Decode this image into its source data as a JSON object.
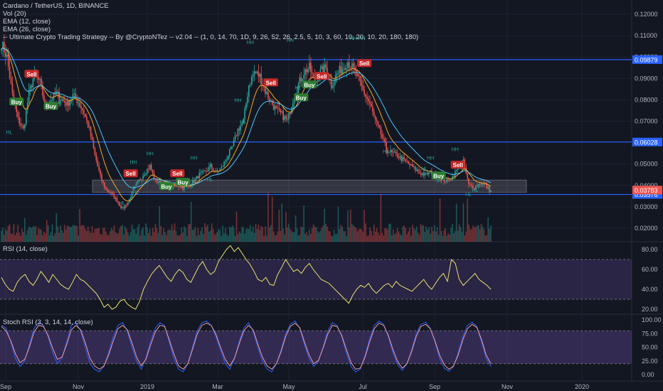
{
  "header": {
    "title": "Cardano / TetherUS, 1D, BINANCE",
    "indicators": [
      "Vol (20)",
      "EMA (12, close)",
      "EMA (26, close)",
      "-- Ultimate Crypto Trading Strategy -- By @CryptoNTez -- v2.04 -- (1, 0, 14, 70, 1D, 9, 26, 52, 26, 2.5, 5, 10, 3, 60, 10, 20, 10, 20, 180, 180)"
    ]
  },
  "rsi_pane": {
    "label": "RSI (14, close)"
  },
  "stoch_pane": {
    "label": "Stoch RSI (3, 3, 14, 14, close)"
  },
  "colors": {
    "background": "#131722",
    "up": "#26a69a",
    "down": "#ef5350",
    "ema12": "#f5a623",
    "ema26": "#4fc3f7",
    "hline": "#2962ff",
    "rsi_line": "#e8e36b",
    "rsi_band": "#7e57c2",
    "stoch_k": "#2962ff",
    "stoch_d": "#ef9a9a",
    "buy": "#2e7d32",
    "sell": "#c62828",
    "last_price": "#ef5350"
  },
  "chart_data": [
    {
      "type": "candlestick",
      "title": "Cardano / TetherUS, 1D, BINANCE",
      "ylim": [
        0.02,
        0.125
      ],
      "y_ticks": [
        "0.12000",
        "0.11000",
        "0.10000",
        "0.09000",
        "0.08000",
        "0.07000",
        "0.05000",
        "0.04000",
        "0.03000",
        "0.02000"
      ],
      "price_labels": [
        {
          "text": "0.09879",
          "value": 0.09879,
          "kind": "hline"
        },
        {
          "text": "0.06028",
          "value": 0.06028,
          "kind": "hline"
        },
        {
          "text": "0.03576",
          "value": 0.03576,
          "kind": "hline"
        },
        {
          "text": "0.03783",
          "value": 0.03783,
          "kind": "last"
        }
      ],
      "x_ticks": [
        "Sep",
        "Nov",
        "2019",
        "Mar",
        "May",
        "Jul",
        "Sep",
        "Nov",
        "2020"
      ],
      "zone": {
        "from": 0.0368,
        "to": 0.0425
      },
      "close_path": [
        {
          "i": 0,
          "v": 0.1065
        },
        {
          "i": 4,
          "v": 0.1
        },
        {
          "i": 8,
          "v": 0.082
        },
        {
          "i": 12,
          "v": 0.071
        },
        {
          "i": 16,
          "v": 0.066
        },
        {
          "i": 20,
          "v": 0.083
        },
        {
          "i": 24,
          "v": 0.092
        },
        {
          "i": 28,
          "v": 0.088
        },
        {
          "i": 32,
          "v": 0.077
        },
        {
          "i": 36,
          "v": 0.08
        },
        {
          "i": 40,
          "v": 0.083
        },
        {
          "i": 44,
          "v": 0.08
        },
        {
          "i": 48,
          "v": 0.078
        },
        {
          "i": 52,
          "v": 0.082
        },
        {
          "i": 56,
          "v": 0.079
        },
        {
          "i": 60,
          "v": 0.074
        },
        {
          "i": 64,
          "v": 0.066
        },
        {
          "i": 68,
          "v": 0.054
        },
        {
          "i": 72,
          "v": 0.044
        },
        {
          "i": 76,
          "v": 0.038
        },
        {
          "i": 80,
          "v": 0.036
        },
        {
          "i": 84,
          "v": 0.033
        },
        {
          "i": 88,
          "v": 0.029
        },
        {
          "i": 92,
          "v": 0.032
        },
        {
          "i": 96,
          "v": 0.038
        },
        {
          "i": 100,
          "v": 0.042
        },
        {
          "i": 104,
          "v": 0.046
        },
        {
          "i": 108,
          "v": 0.049
        },
        {
          "i": 112,
          "v": 0.042
        },
        {
          "i": 116,
          "v": 0.041
        },
        {
          "i": 120,
          "v": 0.04
        },
        {
          "i": 124,
          "v": 0.039
        },
        {
          "i": 128,
          "v": 0.04
        },
        {
          "i": 132,
          "v": 0.039
        },
        {
          "i": 136,
          "v": 0.04
        },
        {
          "i": 140,
          "v": 0.042
        },
        {
          "i": 144,
          "v": 0.045
        },
        {
          "i": 148,
          "v": 0.046
        },
        {
          "i": 152,
          "v": 0.049
        },
        {
          "i": 156,
          "v": 0.046
        },
        {
          "i": 160,
          "v": 0.048
        },
        {
          "i": 164,
          "v": 0.053
        },
        {
          "i": 168,
          "v": 0.058
        },
        {
          "i": 172,
          "v": 0.066
        },
        {
          "i": 176,
          "v": 0.07
        },
        {
          "i": 180,
          "v": 0.087
        },
        {
          "i": 184,
          "v": 0.093
        },
        {
          "i": 188,
          "v": 0.091
        },
        {
          "i": 192,
          "v": 0.084
        },
        {
          "i": 196,
          "v": 0.079
        },
        {
          "i": 200,
          "v": 0.075
        },
        {
          "i": 204,
          "v": 0.073
        },
        {
          "i": 208,
          "v": 0.07
        },
        {
          "i": 212,
          "v": 0.08
        },
        {
          "i": 216,
          "v": 0.087
        },
        {
          "i": 220,
          "v": 0.093
        },
        {
          "i": 224,
          "v": 0.095
        },
        {
          "i": 228,
          "v": 0.088
        },
        {
          "i": 232,
          "v": 0.093
        },
        {
          "i": 236,
          "v": 0.095
        },
        {
          "i": 240,
          "v": 0.087
        },
        {
          "i": 244,
          "v": 0.092
        },
        {
          "i": 248,
          "v": 0.095
        },
        {
          "i": 252,
          "v": 0.098
        },
        {
          "i": 256,
          "v": 0.094
        },
        {
          "i": 260,
          "v": 0.089
        },
        {
          "i": 264,
          "v": 0.083
        },
        {
          "i": 268,
          "v": 0.078
        },
        {
          "i": 272,
          "v": 0.07
        },
        {
          "i": 276,
          "v": 0.064
        },
        {
          "i": 280,
          "v": 0.057
        },
        {
          "i": 284,
          "v": 0.055
        },
        {
          "i": 288,
          "v": 0.054
        },
        {
          "i": 292,
          "v": 0.052
        },
        {
          "i": 296,
          "v": 0.05
        },
        {
          "i": 300,
          "v": 0.048
        },
        {
          "i": 304,
          "v": 0.046
        },
        {
          "i": 308,
          "v": 0.045
        },
        {
          "i": 312,
          "v": 0.046
        },
        {
          "i": 316,
          "v": 0.044
        },
        {
          "i": 320,
          "v": 0.043
        },
        {
          "i": 324,
          "v": 0.042
        },
        {
          "i": 328,
          "v": 0.044
        },
        {
          "i": 332,
          "v": 0.048
        },
        {
          "i": 336,
          "v": 0.051
        },
        {
          "i": 340,
          "v": 0.04
        },
        {
          "i": 344,
          "v": 0.039
        },
        {
          "i": 348,
          "v": 0.041
        },
        {
          "i": 352,
          "v": 0.04
        },
        {
          "i": 355,
          "v": 0.0378
        }
      ],
      "markers": [
        {
          "text": "Sell",
          "kind": "sell",
          "i": 22,
          "v": 0.092
        },
        {
          "text": "Buy",
          "kind": "buy",
          "i": 11,
          "v": 0.079
        },
        {
          "text": "Buy",
          "kind": "buy",
          "i": 36,
          "v": 0.077
        },
        {
          "text": "Sell",
          "kind": "sell",
          "i": 94,
          "v": 0.0455
        },
        {
          "text": "Buy",
          "kind": "buy",
          "i": 120,
          "v": 0.0395
        },
        {
          "text": "Sell",
          "kind": "sell",
          "i": 128,
          "v": 0.0455
        },
        {
          "text": "Buy",
          "kind": "buy",
          "i": 132,
          "v": 0.0415
        },
        {
          "text": "Sell",
          "kind": "sell",
          "i": 196,
          "v": 0.088
        },
        {
          "text": "Buy",
          "kind": "buy",
          "i": 218,
          "v": 0.081
        },
        {
          "text": "Buy",
          "kind": "buy",
          "i": 224,
          "v": 0.087
        },
        {
          "text": "Sell",
          "kind": "sell",
          "i": 233,
          "v": 0.091
        },
        {
          "text": "Sell",
          "kind": "sell",
          "i": 264,
          "v": 0.097
        },
        {
          "text": "Buy",
          "kind": "buy",
          "i": 318,
          "v": 0.0445
        },
        {
          "text": "Sell",
          "kind": "sell",
          "i": 332,
          "v": 0.0495
        }
      ],
      "pivot_labels": [
        {
          "text": "HL",
          "i": 6,
          "v": 0.064
        },
        {
          "text": "HL",
          "i": 42,
          "v": 0.078
        },
        {
          "text": "HH",
          "i": 181,
          "v": 0.106
        },
        {
          "text": "HH",
          "i": 210,
          "v": 0.107
        },
        {
          "text": "HH",
          "i": 256,
          "v": 0.108
        },
        {
          "text": "HH",
          "i": 262,
          "v": 0.108
        },
        {
          "text": "HH",
          "i": 108,
          "v": 0.054
        },
        {
          "text": "HH",
          "i": 96,
          "v": 0.05
        },
        {
          "text": "HH",
          "i": 140,
          "v": 0.052
        },
        {
          "text": "HL",
          "i": 88,
          "v": 0.031
        },
        {
          "text": "HL",
          "i": 98,
          "v": 0.036
        },
        {
          "text": "HL",
          "i": 176,
          "v": 0.069
        },
        {
          "text": "HL",
          "i": 216,
          "v": 0.085
        },
        {
          "text": "HL",
          "i": 280,
          "v": 0.055
        },
        {
          "text": "HL",
          "i": 308,
          "v": 0.047
        },
        {
          "text": "HH",
          "i": 312,
          "v": 0.052
        },
        {
          "text": "HH",
          "i": 330,
          "v": 0.056
        },
        {
          "text": "HL",
          "i": 340,
          "v": 0.035
        },
        {
          "text": "HL",
          "i": 345,
          "v": 0.037
        },
        {
          "text": "HH",
          "i": 172,
          "v": 0.079
        },
        {
          "text": "HL",
          "i": 152,
          "v": 0.042
        }
      ]
    },
    {
      "type": "line",
      "title": "RSI (14, close)",
      "ylim": [
        15,
        88
      ],
      "y_ticks": [
        "80.00",
        "60.00",
        "40.00",
        "20.00"
      ],
      "band": [
        30,
        70
      ],
      "values": [
        52,
        45,
        40,
        38,
        47,
        52,
        55,
        48,
        44,
        50,
        58,
        53,
        47,
        55,
        50,
        45,
        42,
        40,
        47,
        55,
        50,
        48,
        44,
        40,
        36,
        30,
        22,
        25,
        20,
        22,
        28,
        30,
        25,
        22,
        20,
        28,
        40,
        48,
        55,
        60,
        64,
        58,
        52,
        48,
        55,
        60,
        57,
        50,
        47,
        55,
        63,
        68,
        60,
        55,
        58,
        68,
        74,
        80,
        84,
        78,
        82,
        76,
        70,
        65,
        58,
        50,
        48,
        52,
        45,
        44,
        55,
        62,
        70,
        64,
        58,
        60,
        56,
        62,
        66,
        60,
        55,
        50,
        48,
        46,
        42,
        38,
        34,
        30,
        26,
        34,
        40,
        44,
        42,
        46,
        40,
        36,
        40,
        44,
        46,
        42,
        48,
        44,
        42,
        40,
        38,
        42,
        46,
        50,
        44,
        40,
        46,
        52,
        56,
        48,
        70,
        66,
        50,
        44,
        48,
        52,
        56,
        50,
        47,
        44,
        40
      ]
    },
    {
      "type": "line",
      "title": "Stoch RSI (3, 3, 14, 14, close)",
      "ylim": [
        -6,
        108
      ],
      "y_ticks": [
        "100.00",
        "75.00",
        "50.00",
        "25.00",
        "0.00"
      ],
      "band": [
        20,
        80
      ],
      "series": [
        {
          "values": [
            90,
            85,
            60,
            30,
            15,
            25,
            55,
            85,
            95,
            90,
            70,
            40,
            20,
            30,
            60,
            90,
            95,
            80,
            50,
            20,
            10,
            5,
            15,
            40,
            70,
            90,
            95,
            80,
            50,
            25,
            10,
            30,
            60,
            85,
            95,
            90,
            60,
            30,
            10,
            5,
            20,
            50,
            80,
            95,
            98,
            90,
            70,
            45,
            20,
            10,
            30,
            60,
            85,
            95,
            80,
            50,
            25,
            10,
            5,
            20,
            45,
            75,
            92,
            98,
            85,
            55,
            30,
            15,
            25,
            50,
            80,
            95,
            90,
            70,
            40,
            15,
            5,
            10,
            35,
            65,
            90,
            98,
            92,
            70,
            40,
            18,
            8,
            20,
            45,
            75,
            92,
            96,
            85,
            60,
            30,
            12,
            6,
            15,
            40,
            70,
            90,
            96,
            88,
            60,
            30,
            15
          ]
        },
        {
          "values": [
            88,
            80,
            62,
            38,
            22,
            28,
            50,
            78,
            90,
            88,
            72,
            48,
            28,
            32,
            55,
            82,
            90,
            82,
            58,
            30,
            16,
            10,
            16,
            36,
            62,
            84,
            90,
            82,
            58,
            32,
            16,
            28,
            54,
            78,
            90,
            88,
            64,
            38,
            16,
            10,
            20,
            46,
            74,
            90,
            94,
            90,
            74,
            50,
            28,
            16,
            30,
            56,
            80,
            90,
            82,
            56,
            32,
            16,
            10,
            20,
            42,
            70,
            88,
            94,
            86,
            60,
            36,
            20,
            26,
            48,
            74,
            90,
            88,
            72,
            46,
            22,
            10,
            12,
            32,
            60,
            84,
            94,
            90,
            72,
            46,
            24,
            12,
            20,
            42,
            70,
            88,
            92,
            84,
            62,
            36,
            18,
            10,
            16,
            36,
            64,
            84,
            92,
            86,
            64,
            36,
            20
          ]
        }
      ]
    }
  ]
}
